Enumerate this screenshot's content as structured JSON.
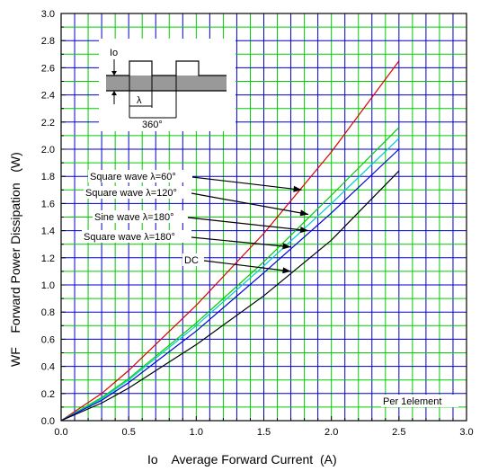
{
  "chart_data": {
    "type": "line",
    "title": "",
    "xlabel": "Io    Average Forward Current  (A)",
    "ylabel": "WF    Forward Power Dissipation   (W)",
    "xlim": [
      0.0,
      3.0
    ],
    "ylim": [
      0.0,
      3.0
    ],
    "x_ticks": [
      "0.0",
      "0.5",
      "1.0",
      "1.5",
      "2.0",
      "2.5",
      "3.0"
    ],
    "y_ticks": [
      "0.0",
      "0.2",
      "0.4",
      "0.6",
      "0.8",
      "1.0",
      "1.2",
      "1.4",
      "1.6",
      "1.8",
      "2.0",
      "2.2",
      "2.4",
      "2.6",
      "2.8",
      "3.0"
    ],
    "grid": true,
    "grid_colors": {
      "blue_lines": "#0000cc",
      "green_lines": "#00cc00"
    },
    "series": [
      {
        "name": "Square wave λ=60°",
        "color": "#dd0000",
        "x": [
          0,
          0.3,
          0.5,
          1.0,
          1.5,
          2.0,
          2.5
        ],
        "y": [
          0,
          0.2,
          0.37,
          0.85,
          1.38,
          1.98,
          2.65
        ]
      },
      {
        "name": "Square wave λ=120°",
        "color": "#00cc00",
        "x": [
          0,
          0.3,
          0.5,
          1.0,
          1.5,
          2.0,
          2.5
        ],
        "y": [
          0,
          0.17,
          0.31,
          0.72,
          1.17,
          1.66,
          2.16
        ]
      },
      {
        "name": "Sine wave λ=180°",
        "color": "#00cccc",
        "x": [
          0,
          0.3,
          0.5,
          1.0,
          1.5,
          2.0,
          2.5
        ],
        "y": [
          0,
          0.16,
          0.3,
          0.7,
          1.14,
          1.6,
          2.08
        ]
      },
      {
        "name": "Square wave λ=180°",
        "color": "#0000dd",
        "x": [
          0,
          0.3,
          0.5,
          1.0,
          1.5,
          2.0,
          2.5
        ],
        "y": [
          0,
          0.15,
          0.28,
          0.66,
          1.09,
          1.53,
          2.0
        ]
      },
      {
        "name": "DC",
        "color": "#000000",
        "x": [
          0,
          0.3,
          0.5,
          1.0,
          1.5,
          2.0,
          2.5
        ],
        "y": [
          0,
          0.13,
          0.24,
          0.56,
          0.92,
          1.33,
          1.84
        ]
      }
    ],
    "annotations": [
      {
        "text": "Square wave λ=60°",
        "arrow_to": [
          1.78,
          1.7
        ]
      },
      {
        "text": "Square wave λ=120°",
        "arrow_to": [
          1.83,
          1.52
        ]
      },
      {
        "text": "Sine wave λ=180°",
        "arrow_to": [
          1.83,
          1.4
        ]
      },
      {
        "text": "Square wave λ=180°",
        "arrow_to": [
          1.7,
          1.28
        ]
      },
      {
        "text": "DC",
        "arrow_to": [
          1.7,
          1.1
        ]
      }
    ],
    "note": "Per 1element",
    "inset": {
      "io_label": "Io",
      "lambda_label": "λ",
      "period_label": "360°"
    }
  }
}
